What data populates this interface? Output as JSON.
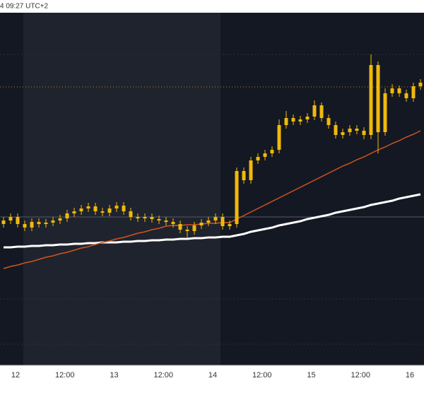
{
  "header": {
    "timestamp": "4 09:27 UTC+2"
  },
  "chart_data": {
    "type": "candlestick",
    "color": "#f0b90b",
    "ylim": [
      0,
      499
    ],
    "grid_lines": [
      440,
      94,
      30
    ],
    "price_lines": [
      {
        "value": 394,
        "color": "#b8860b",
        "style": "dotted"
      },
      {
        "value": 210,
        "color": "#555a66",
        "style": "solid"
      }
    ],
    "x_labels": [
      "12",
      "12:00",
      "13",
      "12:00",
      "14",
      "12:00",
      "15",
      "12:00",
      "16"
    ],
    "open": [
      200,
      205,
      210,
      200,
      195,
      203,
      200,
      202,
      205,
      208,
      215,
      218,
      222,
      225,
      218,
      216,
      222,
      226,
      218,
      210,
      208,
      210,
      207,
      205,
      203,
      200,
      192,
      190,
      198,
      202,
      205,
      210,
      197,
      200,
      275,
      262,
      290,
      295,
      300,
      305,
      340,
      350,
      345,
      348,
      352,
      368,
      350,
      340,
      326,
      330,
      335,
      332,
      326,
      425,
      330,
      385,
      392,
      385,
      378,
      395
    ],
    "high": [
      210,
      215,
      215,
      205,
      208,
      208,
      207,
      210,
      213,
      220,
      223,
      227,
      230,
      230,
      223,
      227,
      231,
      231,
      223,
      215,
      215,
      215,
      212,
      210,
      208,
      205,
      197,
      203,
      207,
      210,
      215,
      215,
      205,
      280,
      280,
      295,
      300,
      305,
      310,
      348,
      360,
      355,
      353,
      357,
      375,
      372,
      355,
      345,
      335,
      340,
      340,
      337,
      440,
      430,
      392,
      398,
      396,
      390,
      400,
      405
    ],
    "low": [
      195,
      200,
      195,
      190,
      190,
      195,
      195,
      197,
      200,
      203,
      210,
      213,
      217,
      213,
      211,
      211,
      217,
      213,
      205,
      203,
      203,
      202,
      200,
      198,
      195,
      187,
      180,
      185,
      193,
      197,
      200,
      192,
      192,
      195,
      257,
      257,
      285,
      290,
      295,
      300,
      335,
      340,
      340,
      343,
      347,
      345,
      335,
      321,
      321,
      325,
      327,
      320,
      320,
      300,
      325,
      380,
      380,
      373,
      373,
      390
    ],
    "close": [
      205,
      210,
      200,
      195,
      203,
      200,
      202,
      205,
      208,
      215,
      218,
      222,
      225,
      218,
      216,
      222,
      226,
      218,
      210,
      208,
      210,
      207,
      205,
      203,
      200,
      192,
      190,
      198,
      202,
      205,
      210,
      197,
      200,
      275,
      262,
      290,
      295,
      300,
      305,
      340,
      350,
      345,
      348,
      352,
      368,
      350,
      340,
      326,
      330,
      335,
      332,
      326,
      425,
      330,
      385,
      392,
      385,
      378,
      395,
      400
    ],
    "series": [
      {
        "color": "#ffffff",
        "values": [
          167,
          167,
          168,
          168,
          169,
          169,
          170,
          170,
          171,
          171,
          172,
          172,
          173,
          173,
          174,
          174,
          174,
          175,
          175,
          176,
          176,
          177,
          177,
          178,
          178,
          179,
          179,
          180,
          180,
          181,
          181,
          182,
          182,
          184,
          186,
          189,
          191,
          193,
          195,
          198,
          200,
          202,
          204,
          207,
          209,
          211,
          213,
          216,
          218,
          220,
          222,
          224,
          227,
          229,
          231,
          233,
          236,
          238,
          240,
          242
        ]
      },
      {
        "color": "#d2541e",
        "values": [
          137,
          140,
          142,
          145,
          147,
          150,
          153,
          155,
          158,
          160,
          163,
          166,
          168,
          171,
          174,
          176,
          179,
          181,
          184,
          187,
          189,
          192,
          194,
          197,
          198,
          198,
          199,
          199,
          200,
          201,
          201,
          202,
          202,
          207,
          212,
          217,
          222,
          227,
          232,
          237,
          242,
          247,
          252,
          257,
          262,
          267,
          272,
          277,
          282,
          286,
          291,
          295,
          300,
          305,
          309,
          314,
          318,
          323,
          327,
          332
        ]
      }
    ]
  }
}
